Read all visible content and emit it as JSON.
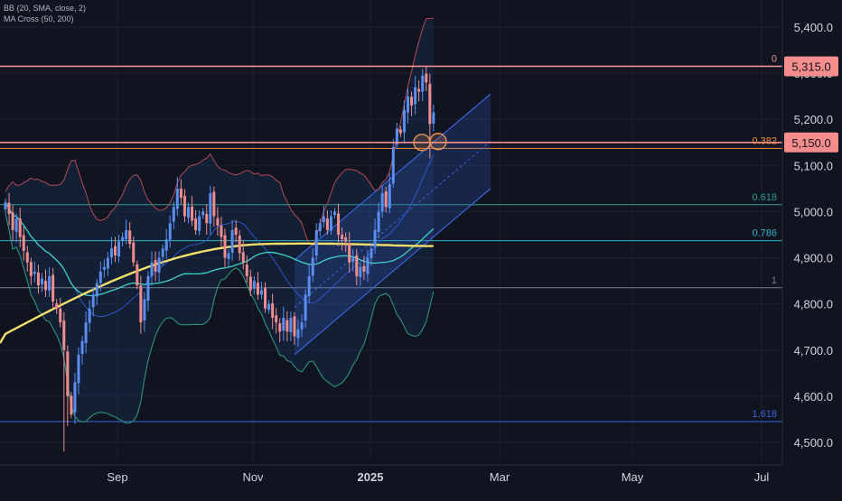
{
  "indicators": {
    "bb_label": "BB (20, SMA, close, 2)",
    "ma_label": "MA Cross (50, 200)"
  },
  "colors": {
    "background": "#0f1420",
    "grid": "#1b2030",
    "axis_text": "#d1d4dc",
    "candle_up": "#5b8ef0",
    "candle_down": "#f08d8d",
    "bb_upper": "#b24a55",
    "bb_lower": "#2e9e7e",
    "bb_basis": "#2f55c8",
    "ma_fast": "#3fd3c3",
    "ma_slow": "#f3df6c",
    "channel": "#3a63d6",
    "resistance_line": "#f58d8d",
    "fib_0382": "#f0923e",
    "fib_0618": "#2c9c91",
    "fib_0786": "#2fb4c6",
    "fib_1": "#7a7f8c",
    "fib_1618": "#3f63d9",
    "marker": "#e8955a"
  },
  "price_axis": {
    "ticks": [
      "5,400.0",
      "5,300.0",
      "5,200.0",
      "5,100.0",
      "5,000.0",
      "4,900.0",
      "4,800.0",
      "4,700.0",
      "4,600.0",
      "4,500.0"
    ],
    "highlight_labels": [
      "5,315.0",
      "5,150.0"
    ]
  },
  "time_axis": {
    "labels": [
      "Sep",
      "Nov",
      "2025",
      "Mar",
      "May",
      "Jul"
    ]
  },
  "fib_levels": [
    {
      "label": "0",
      "price": 5315
    },
    {
      "label": "0.382",
      "price": 5137
    },
    {
      "label": "0.618",
      "price": 5015
    },
    {
      "label": "0.786",
      "price": 4937
    },
    {
      "label": "1",
      "price": 4835
    },
    {
      "label": "1.618",
      "price": 4545
    }
  ],
  "horizontal_levels": [
    5315,
    5150
  ],
  "chart_data": {
    "type": "candlestick",
    "title": "",
    "y_range": [
      4470,
      5440
    ],
    "y_ticks": [
      5400,
      5300,
      5200,
      5100,
      5000,
      4900,
      4800,
      4700,
      4600,
      4500
    ],
    "x_labels": [
      "Sep",
      "Nov",
      "2025",
      "Mar",
      "May",
      "Jul"
    ],
    "closes": [
      5020,
      4995,
      4960,
      4985,
      4945,
      4915,
      4890,
      4860,
      4870,
      4840,
      4855,
      4830,
      4860,
      4805,
      4790,
      4760,
      4700,
      4600,
      4560,
      4630,
      4690,
      4720,
      4760,
      4790,
      4820,
      4845,
      4870,
      4880,
      4900,
      4920,
      4905,
      4935,
      4945,
      4960,
      4930,
      4890,
      4840,
      4760,
      4810,
      4860,
      4890,
      4870,
      4900,
      4920,
      4940,
      4975,
      5010,
      5050,
      5030,
      4990,
      5010,
      4980,
      4960,
      4990,
      5000,
      4975,
      5040,
      4990,
      4970,
      4945,
      4900,
      4910,
      4960,
      4950,
      4910,
      4890,
      4860,
      4830,
      4850,
      4820,
      4830,
      4790,
      4800,
      4770,
      4760,
      4740,
      4770,
      4740,
      4770,
      4730,
      4745,
      4760,
      4820,
      4860,
      4900,
      4960,
      4975,
      4990,
      4960,
      4990,
      5000,
      4950,
      4940,
      4935,
      4890,
      4900,
      4860,
      4880,
      4870,
      4900,
      4920,
      4960,
      5000,
      5040,
      5010,
      5060,
      5140,
      5180,
      5170,
      5220,
      5250,
      5230,
      5270,
      5260,
      5295,
      5280,
      5190,
      5215
    ]
  }
}
